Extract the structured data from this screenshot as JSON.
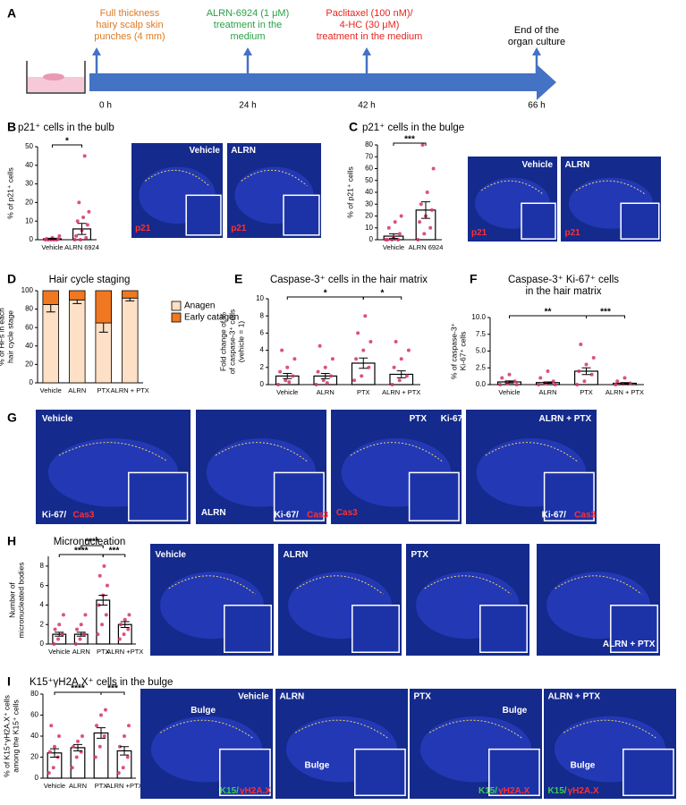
{
  "panel_labels": [
    "A",
    "B",
    "C",
    "D",
    "E",
    "F",
    "G",
    "H",
    "I"
  ],
  "timeline": {
    "events": [
      {
        "time": "0 h",
        "lines": [
          "Full thickness",
          "hairy scalp skin",
          "punches (4 mm)"
        ],
        "color": "#e07a1f"
      },
      {
        "time": "24 h",
        "lines": [
          "ALRN-6924 (1 μM)",
          "treatment in the",
          "medium"
        ],
        "color": "#2aa146"
      },
      {
        "time": "42 h",
        "lines": [
          "Paclitaxel (100 nM)/",
          "4-HC (30 μM)",
          "treatment in the medium"
        ],
        "color": "#e8251f"
      },
      {
        "time": "66 h",
        "lines": [
          "End of the",
          "organ culture"
        ],
        "color": "#000000"
      }
    ]
  },
  "chart_data": [
    {
      "type": "bar",
      "title": "p21⁺ cells in the bulb",
      "ylabel": [
        "% of p21⁺ cells"
      ],
      "categories": [
        "Vehicle",
        "ALRN 6924"
      ],
      "values": [
        0.5,
        5.8
      ],
      "errors": [
        0.3,
        3
      ],
      "points": [
        [
          0,
          0,
          0,
          0.5,
          1,
          0.3,
          0,
          0,
          2
        ],
        [
          0,
          0,
          1,
          2,
          5,
          8,
          10,
          12,
          15,
          20,
          45
        ]
      ],
      "ylim": [
        0,
        50
      ],
      "yticks": [
        0,
        10,
        20,
        30,
        40,
        50
      ],
      "color": "#ffffff",
      "point_color": "#d6336c",
      "sig": [
        {
          "from": 0,
          "to": 1,
          "label": "*"
        }
      ]
    },
    {
      "type": "bar",
      "title": "p21⁺ cells in the bulge",
      "ylabel": [
        "% of p21⁺ cells"
      ],
      "categories": [
        "Vehicle",
        "ALRN 6924"
      ],
      "values": [
        3,
        25
      ],
      "errors": [
        2,
        7
      ],
      "points": [
        [
          0,
          0,
          0,
          0,
          2,
          5,
          10,
          15,
          20
        ],
        [
          0,
          5,
          10,
          15,
          20,
          25,
          30,
          40,
          60,
          80
        ]
      ],
      "ylim": [
        0,
        80
      ],
      "yticks": [
        0,
        10,
        20,
        30,
        40,
        50,
        60,
        70,
        80
      ],
      "color": "#ffffff",
      "point_color": "#d6336c",
      "sig": [
        {
          "from": 0,
          "to": 1,
          "label": "***"
        }
      ]
    },
    {
      "type": "stacked_bar",
      "title": "Hair cycle staging",
      "ylabel": [
        "% of HFs in each",
        "hair cycle stage"
      ],
      "categories": [
        "Vehicle",
        "ALRN",
        "PTX",
        "ALRN + PTX"
      ],
      "series": [
        {
          "name": "Anagen",
          "color": "#fde0c5",
          "values": [
            85,
            90,
            65,
            92
          ],
          "errors": [
            8,
            4,
            10,
            3
          ]
        },
        {
          "name": "Early catagen",
          "color": "#f07820",
          "values": [
            15,
            10,
            35,
            8
          ]
        }
      ],
      "ylim": [
        0,
        100
      ],
      "yticks": [
        0,
        20,
        40,
        60,
        80,
        100
      ]
    },
    {
      "type": "bar",
      "title": "Caspase-3⁺ cells in the hair matrix",
      "ylabel": [
        "Fold change of %",
        "of caspase-3⁺ cells",
        "(vehicle = 1)"
      ],
      "categories": [
        "Vehicle",
        "ALRN",
        "PTX",
        "ALRN + PTX"
      ],
      "values": [
        1,
        1,
        2.5,
        1.2
      ],
      "errors": [
        0.3,
        0.3,
        0.6,
        0.4
      ],
      "points": [
        [
          0,
          0.5,
          1,
          1.5,
          2,
          3,
          4,
          0.3
        ],
        [
          0,
          0.5,
          1,
          1.5,
          2,
          3,
          4.5,
          0.2
        ],
        [
          0.5,
          1,
          2,
          3,
          4,
          5,
          6,
          8
        ],
        [
          0,
          0.5,
          1,
          2,
          3,
          4,
          5
        ]
      ],
      "ylim": [
        0,
        10
      ],
      "yticks": [
        0,
        2,
        4,
        6,
        8,
        10
      ],
      "color": "#ffffff",
      "point_color": "#d6336c",
      "sig": [
        {
          "from": 0,
          "to": 2,
          "label": "*"
        },
        {
          "from": 2,
          "to": 3,
          "label": "*"
        }
      ]
    },
    {
      "type": "bar",
      "title": [
        "Caspase-3⁺ Ki-67⁺ cells",
        "in the hair matrix"
      ],
      "ylabel": [
        "% of caspase-3⁺",
        "Ki-67⁺ cells"
      ],
      "categories": [
        "Vehicle",
        "ALRN",
        "PTX",
        "ALRN + PTX"
      ],
      "values": [
        0.4,
        0.3,
        2,
        0.2
      ],
      "errors": [
        0.15,
        0.1,
        0.5,
        0.1
      ],
      "points": [
        [
          0,
          0.2,
          0.5,
          1,
          1.5,
          0
        ],
        [
          0,
          0.2,
          0.5,
          1,
          2,
          0
        ],
        [
          0,
          0.5,
          1.5,
          2,
          3,
          4,
          6
        ],
        [
          0,
          0.1,
          0.2,
          0.5,
          1
        ]
      ],
      "ylim": [
        0,
        10
      ],
      "yticks": [
        {
          "value": 0,
          "label": "0.0"
        },
        {
          "value": 2.5,
          "label": "2.5"
        },
        {
          "value": 5,
          "label": "5.0"
        },
        {
          "value": 7.5,
          "label": "7.5"
        },
        {
          "value": 10,
          "label": "10.0"
        }
      ],
      "color": "#ffffff",
      "point_color": "#d6336c",
      "sig": [
        {
          "from": 0,
          "to": 2,
          "label": "**"
        },
        {
          "from": 2,
          "to": 3,
          "label": "***"
        }
      ]
    },
    {
      "type": "bar",
      "title": "Micronucleation",
      "ylabel": [
        "Number of",
        "micronucleated bodies"
      ],
      "categories": [
        "Vehicle",
        "ALRN",
        "PTX",
        "ALRN +PTX"
      ],
      "values": [
        1,
        1,
        4.5,
        2
      ],
      "errors": [
        0.2,
        0.2,
        0.5,
        0.3
      ],
      "points": [
        [
          0,
          0.5,
          1,
          1.5,
          2,
          3
        ],
        [
          0,
          0.5,
          1,
          1.5,
          2,
          3
        ],
        [
          1,
          2,
          3,
          4,
          5,
          6,
          7,
          8
        ],
        [
          0.5,
          1,
          1.5,
          2,
          2.5,
          3
        ]
      ],
      "ylim": [
        0,
        9
      ],
      "yticks": [
        0,
        2,
        4,
        6,
        8
      ],
      "color": "#ffffff",
      "point_color": "#d6336c",
      "sig": [
        {
          "from": 0,
          "to": 2,
          "label": "****"
        },
        {
          "from": 1,
          "to": 2,
          "label": "****"
        },
        {
          "from": 2,
          "to": 3,
          "label": "***"
        }
      ]
    },
    {
      "type": "bar",
      "title": "K15⁺γH2A.X⁺ cells in the bulge",
      "ylabel": [
        "% of K15⁺γH2A.X⁺ cells",
        "among the K15⁺ cells"
      ],
      "categories": [
        "Vehicle",
        "ALRN",
        "PTX",
        "ALRN +PTX"
      ],
      "values": [
        24,
        29,
        43,
        26
      ],
      "errors": [
        4,
        3,
        5,
        4
      ],
      "points": [
        [
          5,
          10,
          20,
          25,
          30,
          40,
          50
        ],
        [
          10,
          20,
          25,
          30,
          35,
          40
        ],
        [
          20,
          30,
          40,
          50,
          60,
          65
        ],
        [
          5,
          10,
          20,
          30,
          40,
          50
        ]
      ],
      "ylim": [
        0,
        80
      ],
      "yticks": [
        0,
        20,
        40,
        60,
        80
      ],
      "color": "#ffffff",
      "point_color": "#d6336c",
      "sig": [
        {
          "from": 0,
          "to": 2,
          "label": "****"
        },
        {
          "from": 2,
          "to": 3,
          "label": "***"
        }
      ]
    }
  ],
  "images": [
    {
      "labels": [
        {
          "text": "Vehicle",
          "color": "#ffffff"
        },
        {
          "text": "p21",
          "color": "#ff3030"
        }
      ]
    },
    {
      "labels": [
        {
          "text": "ALRN",
          "color": "#ffffff"
        },
        {
          "text": "p21",
          "color": "#ff3030"
        }
      ]
    },
    {
      "labels": [
        {
          "text": "Vehicle",
          "color": "#ffffff"
        },
        {
          "text": "p21",
          "color": "#ff3030"
        }
      ]
    },
    {
      "labels": [
        {
          "text": "ALRN",
          "color": "#ffffff"
        },
        {
          "text": "p21",
          "color": "#ff3030"
        }
      ]
    },
    {
      "labels": [
        {
          "text": "Vehicle",
          "color": "#ffffff"
        },
        {
          "text": "Ki-67/",
          "color": "#ffffff"
        },
        {
          "text": "Cas3",
          "color": "#ff3030"
        }
      ]
    },
    {
      "labels": [
        {
          "text": "ALRN",
          "color": "#ffffff"
        },
        {
          "text": "Ki-67/",
          "color": "#ffffff"
        },
        {
          "text": "Cas3",
          "color": "#ff3030"
        }
      ]
    },
    {
      "labels": [
        {
          "text": "PTX",
          "color": "#ffffff"
        },
        {
          "text": "Ki-67/",
          "color": "#ffffff"
        },
        {
          "text": "Cas3",
          "color": "#ff3030"
        }
      ]
    },
    {
      "labels": [
        {
          "text": "ALRN + PTX",
          "color": "#ffffff"
        },
        {
          "text": "Ki-67/",
          "color": "#ffffff"
        },
        {
          "text": "Cas3",
          "color": "#ff3030"
        }
      ]
    },
    {
      "labels": [
        {
          "text": "Vehicle",
          "color": "#ffffff"
        }
      ]
    },
    {
      "labels": [
        {
          "text": "ALRN",
          "color": "#ffffff"
        }
      ]
    },
    {
      "labels": [
        {
          "text": "PTX",
          "color": "#ffffff"
        }
      ]
    },
    {
      "labels": [
        {
          "text": "ALRN + PTX",
          "color": "#ffffff"
        }
      ]
    },
    {
      "labels": [
        {
          "text": "Vehicle",
          "color": "#ffffff"
        },
        {
          "text": "Bulge",
          "color": "#ffffff"
        },
        {
          "text": "K15/",
          "color": "#3ccf4e"
        },
        {
          "text": "γH2A.X",
          "color": "#ff3030"
        }
      ]
    },
    {
      "labels": [
        {
          "text": "ALRN",
          "color": "#ffffff"
        },
        {
          "text": "Bulge",
          "color": "#ffffff"
        }
      ]
    },
    {
      "labels": [
        {
          "text": "PTX",
          "color": "#ffffff"
        },
        {
          "text": "Bulge",
          "color": "#ffffff"
        },
        {
          "text": "K15/",
          "color": "#3ccf4e"
        },
        {
          "text": "γH2A.X",
          "color": "#ff3030"
        }
      ]
    },
    {
      "labels": [
        {
          "text": "ALRN + PTX",
          "color": "#ffffff"
        },
        {
          "text": "Bulge",
          "color": "#ffffff"
        },
        {
          "text": "K15/",
          "color": "#3ccf4e"
        },
        {
          "text": "γH2A.X",
          "color": "#ff3030"
        }
      ]
    }
  ]
}
